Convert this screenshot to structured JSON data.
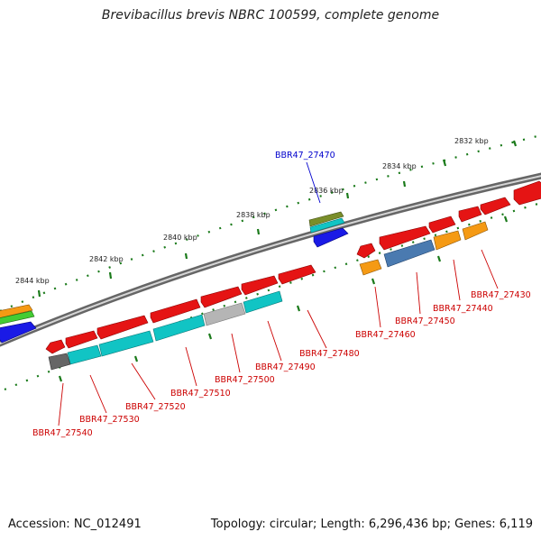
{
  "header": {
    "title": "Brevibacillus brevis NBRC 100599, complete genome"
  },
  "footer": {
    "accession": "Accession: NC_012491",
    "summary": "Topology: circular; Length: 6,296,436 bp; Genes: 6,119"
  },
  "map": {
    "scale_labels": [
      "2832 kbp",
      "2834 kbp",
      "2836 kbp",
      "2838 kbp",
      "2840 kbp",
      "2842 kbp",
      "2844 kbp"
    ],
    "colors": {
      "red": "#ee1111",
      "cyan": "#11c4c4",
      "orange": "#f59a14",
      "blue": "#1a1ae6",
      "steel": "#4a7ab0",
      "gray": "#b5b5b5",
      "darkgray": "#666666",
      "green": "#44cc33",
      "olive": "#7a8e2a",
      "label_red": "#cc0000",
      "label_blue": "#0000cc"
    },
    "genes": [
      {
        "id": "BBR47_27470",
        "color": "label_blue"
      },
      {
        "id": "BBR47_27430",
        "color": "label_red"
      },
      {
        "id": "BBR47_27440",
        "color": "label_red"
      },
      {
        "id": "BBR47_27450",
        "color": "label_red"
      },
      {
        "id": "BBR47_27460",
        "color": "label_red"
      },
      {
        "id": "BBR47_27480",
        "color": "label_red"
      },
      {
        "id": "BBR47_27490",
        "color": "label_red"
      },
      {
        "id": "BBR47_27500",
        "color": "label_red"
      },
      {
        "id": "BBR47_27510",
        "color": "label_red"
      },
      {
        "id": "BBR47_27520",
        "color": "label_red"
      },
      {
        "id": "BBR47_27530",
        "color": "label_red"
      },
      {
        "id": "BBR47_27540",
        "color": "label_red"
      }
    ]
  }
}
